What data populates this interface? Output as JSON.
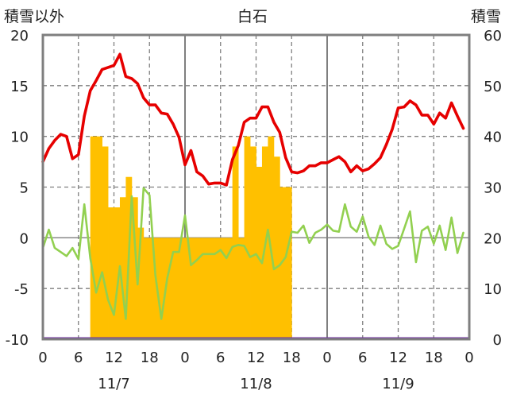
{
  "chart_data": {
    "type": "line",
    "title": "白石",
    "left_axis_title": "積雪以外",
    "right_axis_title": "積雪",
    "left_ylim": [
      -10,
      20
    ],
    "left_yticks": [
      "20",
      "15",
      "10",
      "5",
      "0",
      "-5",
      "-10"
    ],
    "right_ylim": [
      0,
      60
    ],
    "right_yticks": [
      "60",
      "50",
      "40",
      "30",
      "20",
      "10",
      "0"
    ],
    "x_range_hours": [
      0,
      72
    ],
    "x_tick_labels": [
      "0",
      "6",
      "12",
      "18",
      "0",
      "6",
      "12",
      "18",
      "0",
      "6",
      "12",
      "18",
      "0"
    ],
    "date_labels": [
      "11/7",
      "11/8",
      "11/9"
    ],
    "grid": true,
    "colors": {
      "temperature": "#e60000",
      "dewpoint": "#92d050",
      "snow": "#ffc000",
      "baseline": "#7030a0",
      "frame": "#7f7f7f",
      "grid": "#7f7f7f"
    },
    "series": [
      {
        "x": [
          0,
          1,
          2,
          3,
          4,
          5,
          6,
          7,
          8,
          9,
          10,
          11,
          12,
          13,
          14,
          15,
          16,
          17,
          18,
          19,
          20,
          21,
          22,
          23,
          24,
          25,
          26,
          27,
          28,
          29,
          30,
          31,
          32,
          33,
          34,
          35,
          36,
          37,
          38,
          39,
          40,
          41,
          42,
          43,
          44,
          45,
          46,
          47,
          48,
          49,
          50,
          51,
          52,
          53,
          54,
          55,
          56,
          57,
          58,
          59,
          60,
          61,
          62,
          63,
          64,
          65,
          66,
          67,
          68,
          69,
          70,
          71
        ],
        "values": [
          7.5,
          8.8,
          9.6,
          10.2,
          10.0,
          7.8,
          8.2,
          12.0,
          14.5,
          15.5,
          16.6,
          16.8,
          17.0,
          18.1,
          15.9,
          15.7,
          15.2,
          13.8,
          13.1,
          13.1,
          12.3,
          12.2,
          11.2,
          9.9,
          7.2,
          8.6,
          6.5,
          6.1,
          5.3,
          5.4,
          5.4,
          5.2,
          7.7,
          9.1,
          11.4,
          11.8,
          11.8,
          12.9,
          12.9,
          11.4,
          10.4,
          7.9,
          6.5,
          6.4,
          6.6,
          7.1,
          7.1,
          7.4,
          7.4,
          7.7,
          8.0,
          7.5,
          6.5,
          7.1,
          6.6,
          6.8,
          7.3,
          7.9,
          9.2,
          10.7,
          12.8,
          12.9,
          13.5,
          13.1,
          12.1,
          12.1,
          11.2,
          12.3,
          11.8,
          13.3,
          12.0,
          10.8
        ]
      },
      {
        "x": [
          0,
          1,
          2,
          3,
          4,
          5,
          6,
          7,
          8,
          9,
          10,
          11,
          12,
          13,
          14,
          15,
          16,
          17,
          18,
          19,
          20,
          21,
          22,
          23,
          24,
          25,
          26,
          27,
          28,
          29,
          30,
          31,
          32,
          33,
          34,
          35,
          36,
          37,
          38,
          39,
          40,
          41,
          42,
          43,
          44,
          45,
          46,
          47,
          48,
          49,
          50,
          51,
          52,
          53,
          54,
          55,
          56,
          57,
          58,
          59,
          60,
          61,
          62,
          63,
          64,
          65,
          66,
          67,
          68,
          69,
          70,
          71
        ],
        "values": [
          -1.0,
          0.8,
          -1.0,
          -1.4,
          -1.8,
          -1.0,
          -2.1,
          3.3,
          -2.0,
          -5.4,
          -3.4,
          -6.1,
          -7.6,
          -2.8,
          -8.0,
          4.1,
          -4.6,
          4.9,
          4.2,
          -3.7,
          -8.0,
          -4.0,
          -1.4,
          -1.4,
          2.2,
          -2.7,
          -2.2,
          -1.6,
          -1.6,
          -1.6,
          -1.2,
          -2.0,
          -0.9,
          -0.7,
          -0.8,
          -1.9,
          -1.6,
          -2.5,
          0.8,
          -3.1,
          -2.7,
          -1.9,
          0.6,
          0.5,
          1.2,
          -0.5,
          0.5,
          0.8,
          1.3,
          0.7,
          0.6,
          3.3,
          1.1,
          0.6,
          2.1,
          0.1,
          -0.7,
          1.2,
          -0.6,
          -1.1,
          -0.8,
          0.9,
          2.6,
          -2.4,
          0.7,
          1.1,
          -0.6,
          1.2,
          -1.2,
          2.0,
          -1.5,
          0.5
        ]
      },
      {
        "x": [
          8,
          9,
          10,
          11,
          12,
          13,
          14,
          15,
          16,
          17,
          18,
          19,
          20,
          21,
          22,
          23,
          24,
          25,
          26,
          27,
          28,
          29,
          30,
          31,
          32,
          33,
          34,
          35,
          36,
          37,
          38,
          39,
          40,
          41
        ],
        "values": [
          40,
          40,
          38,
          26,
          26,
          28,
          32,
          28,
          22,
          20,
          20,
          20,
          20,
          20,
          20,
          20,
          20,
          20,
          20,
          20,
          20,
          20,
          20,
          20,
          38,
          20,
          40,
          38,
          34,
          38,
          40,
          36,
          30,
          30
        ]
      },
      {
        "x": [
          0,
          72
        ],
        "values": [
          0,
          0
        ]
      }
    ]
  }
}
